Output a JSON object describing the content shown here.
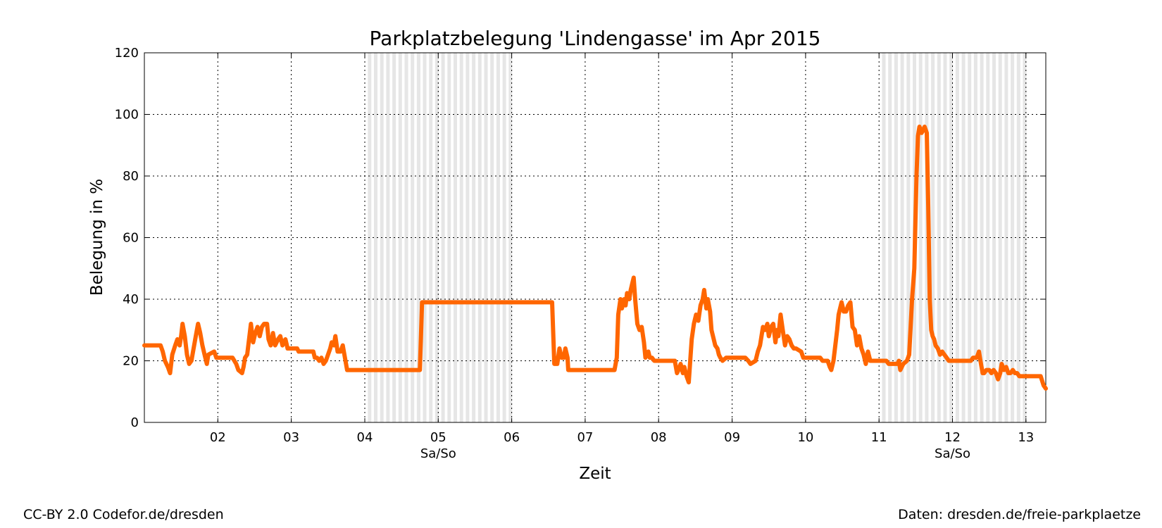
{
  "chart_data": {
    "type": "line",
    "title": "Parkplatzbelegung 'Lindengasse' im Apr 2015",
    "xlabel": "Zeit",
    "ylabel": "Belegung in %",
    "xlim": [
      1.0,
      13.27
    ],
    "ylim": [
      0,
      120
    ],
    "grid": true,
    "x_ticks": [
      {
        "value": 2,
        "label": "02"
      },
      {
        "value": 3,
        "label": "03"
      },
      {
        "value": 4,
        "label": "04"
      },
      {
        "value": 5,
        "label": "05"
      },
      {
        "value": 6,
        "label": "06"
      },
      {
        "value": 7,
        "label": "07"
      },
      {
        "value": 8,
        "label": "08"
      },
      {
        "value": 9,
        "label": "09"
      },
      {
        "value": 10,
        "label": "10"
      },
      {
        "value": 11,
        "label": "11"
      },
      {
        "value": 12,
        "label": "12"
      },
      {
        "value": 13,
        "label": "13"
      }
    ],
    "y_ticks": [
      0,
      20,
      40,
      60,
      80,
      100,
      120
    ],
    "weekends": [
      {
        "start": 4.0,
        "end": 6.0,
        "label": "Sa/So"
      },
      {
        "start": 11.0,
        "end": 13.0,
        "label": "Sa/So"
      }
    ],
    "series": [
      {
        "color": "#ff6600",
        "points": [
          [
            1.0,
            25
          ],
          [
            1.22,
            25
          ],
          [
            1.25,
            23
          ],
          [
            1.28,
            20
          ],
          [
            1.32,
            18
          ],
          [
            1.35,
            16
          ],
          [
            1.38,
            22
          ],
          [
            1.42,
            25
          ],
          [
            1.45,
            27
          ],
          [
            1.48,
            25
          ],
          [
            1.5,
            28
          ],
          [
            1.52,
            32
          ],
          [
            1.55,
            28
          ],
          [
            1.58,
            22
          ],
          [
            1.61,
            19
          ],
          [
            1.64,
            20
          ],
          [
            1.67,
            24
          ],
          [
            1.7,
            28
          ],
          [
            1.73,
            32
          ],
          [
            1.76,
            29
          ],
          [
            1.79,
            25
          ],
          [
            1.82,
            22
          ],
          [
            1.85,
            19
          ],
          [
            1.87,
            22
          ],
          [
            1.95,
            23
          ],
          [
            1.98,
            21
          ],
          [
            2.2,
            21
          ],
          [
            2.25,
            19
          ],
          [
            2.28,
            17
          ],
          [
            2.33,
            16
          ],
          [
            2.35,
            18
          ],
          [
            2.37,
            21
          ],
          [
            2.4,
            22
          ],
          [
            2.43,
            28
          ],
          [
            2.45,
            32
          ],
          [
            2.48,
            26
          ],
          [
            2.51,
            29
          ],
          [
            2.54,
            31
          ],
          [
            2.57,
            28
          ],
          [
            2.6,
            31
          ],
          [
            2.63,
            32
          ],
          [
            2.67,
            32
          ],
          [
            2.69,
            27
          ],
          [
            2.72,
            25
          ],
          [
            2.75,
            29
          ],
          [
            2.78,
            25
          ],
          [
            2.82,
            27
          ],
          [
            2.85,
            28
          ],
          [
            2.88,
            25
          ],
          [
            2.92,
            27
          ],
          [
            2.95,
            24
          ],
          [
            3.08,
            24
          ],
          [
            3.1,
            23
          ],
          [
            3.3,
            23
          ],
          [
            3.32,
            21
          ],
          [
            3.35,
            21
          ],
          [
            3.38,
            20
          ],
          [
            3.41,
            21
          ],
          [
            3.44,
            19
          ],
          [
            3.47,
            20
          ],
          [
            3.5,
            22
          ],
          [
            3.53,
            24
          ],
          [
            3.55,
            26
          ],
          [
            3.58,
            25
          ],
          [
            3.6,
            28
          ],
          [
            3.63,
            23
          ],
          [
            3.67,
            23
          ],
          [
            3.7,
            25
          ],
          [
            3.73,
            21
          ],
          [
            3.76,
            17
          ],
          [
            4.75,
            17
          ],
          [
            4.78,
            39
          ],
          [
            6.55,
            39
          ],
          [
            6.58,
            19
          ],
          [
            6.62,
            19
          ],
          [
            6.65,
            24
          ],
          [
            6.68,
            21
          ],
          [
            6.71,
            21
          ],
          [
            6.73,
            24
          ],
          [
            6.76,
            21
          ],
          [
            6.77,
            17
          ],
          [
            7.4,
            17
          ],
          [
            7.43,
            21
          ],
          [
            7.45,
            35
          ],
          [
            7.48,
            40
          ],
          [
            7.5,
            37
          ],
          [
            7.53,
            40
          ],
          [
            7.55,
            38
          ],
          [
            7.57,
            42
          ],
          [
            7.6,
            40
          ],
          [
            7.62,
            43
          ],
          [
            7.64,
            45
          ],
          [
            7.66,
            47
          ],
          [
            7.68,
            40
          ],
          [
            7.71,
            32
          ],
          [
            7.74,
            30
          ],
          [
            7.77,
            31
          ],
          [
            7.8,
            26
          ],
          [
            7.82,
            21
          ],
          [
            7.86,
            23
          ],
          [
            7.88,
            21
          ],
          [
            7.91,
            21
          ],
          [
            7.94,
            20
          ],
          [
            8.22,
            20
          ],
          [
            8.25,
            16
          ],
          [
            8.27,
            17
          ],
          [
            8.3,
            19
          ],
          [
            8.33,
            16
          ],
          [
            8.35,
            18
          ],
          [
            8.38,
            15
          ],
          [
            8.41,
            13
          ],
          [
            8.43,
            20
          ],
          [
            8.45,
            27
          ],
          [
            8.48,
            32
          ],
          [
            8.51,
            35
          ],
          [
            8.54,
            33
          ],
          [
            8.57,
            38
          ],
          [
            8.6,
            40
          ],
          [
            8.62,
            43
          ],
          [
            8.65,
            37
          ],
          [
            8.67,
            40
          ],
          [
            8.7,
            36
          ],
          [
            8.72,
            30
          ],
          [
            8.75,
            27
          ],
          [
            8.77,
            25
          ],
          [
            8.8,
            24
          ],
          [
            8.82,
            22
          ],
          [
            8.84,
            21
          ],
          [
            8.87,
            20
          ],
          [
            8.92,
            21
          ],
          [
            9.18,
            21
          ],
          [
            9.22,
            20
          ],
          [
            9.25,
            19
          ],
          [
            9.32,
            20
          ],
          [
            9.35,
            23
          ],
          [
            9.38,
            25
          ],
          [
            9.4,
            28
          ],
          [
            9.42,
            31
          ],
          [
            9.45,
            30
          ],
          [
            9.48,
            32
          ],
          [
            9.5,
            28
          ],
          [
            9.53,
            31
          ],
          [
            9.56,
            32
          ],
          [
            9.59,
            26
          ],
          [
            9.61,
            30
          ],
          [
            9.63,
            28
          ],
          [
            9.66,
            35
          ],
          [
            9.69,
            30
          ],
          [
            9.72,
            25
          ],
          [
            9.75,
            28
          ],
          [
            9.78,
            27
          ],
          [
            9.81,
            25
          ],
          [
            9.84,
            24
          ],
          [
            9.87,
            24
          ],
          [
            9.94,
            23
          ],
          [
            9.97,
            21
          ],
          [
            10.2,
            21
          ],
          [
            10.23,
            20
          ],
          [
            10.3,
            20
          ],
          [
            10.33,
            18
          ],
          [
            10.35,
            17
          ],
          [
            10.38,
            20
          ],
          [
            10.4,
            24
          ],
          [
            10.43,
            30
          ],
          [
            10.45,
            35
          ],
          [
            10.47,
            37
          ],
          [
            10.49,
            39
          ],
          [
            10.52,
            36
          ],
          [
            10.55,
            36
          ],
          [
            10.58,
            38
          ],
          [
            10.61,
            39
          ],
          [
            10.64,
            31
          ],
          [
            10.67,
            30
          ],
          [
            10.7,
            25
          ],
          [
            10.73,
            28
          ],
          [
            10.76,
            24
          ],
          [
            10.79,
            22
          ],
          [
            10.82,
            19
          ],
          [
            10.85,
            23
          ],
          [
            10.88,
            20
          ],
          [
            10.91,
            20
          ],
          [
            11.1,
            20
          ],
          [
            11.13,
            19
          ],
          [
            11.25,
            19
          ],
          [
            11.27,
            20
          ],
          [
            11.29,
            17
          ],
          [
            11.33,
            19
          ],
          [
            11.38,
            20
          ],
          [
            11.41,
            22
          ],
          [
            11.45,
            40
          ],
          [
            11.48,
            50
          ],
          [
            11.51,
            80
          ],
          [
            11.53,
            93
          ],
          [
            11.55,
            96
          ],
          [
            11.58,
            94
          ],
          [
            11.62,
            96
          ],
          [
            11.65,
            94
          ],
          [
            11.67,
            70
          ],
          [
            11.69,
            40
          ],
          [
            11.71,
            30
          ],
          [
            11.73,
            28
          ],
          [
            11.75,
            27
          ],
          [
            11.77,
            25
          ],
          [
            11.8,
            24
          ],
          [
            11.83,
            22
          ],
          [
            11.86,
            23
          ],
          [
            11.89,
            22
          ],
          [
            11.92,
            21
          ],
          [
            11.95,
            20
          ],
          [
            12.25,
            20
          ],
          [
            12.28,
            21
          ],
          [
            12.33,
            21
          ],
          [
            12.36,
            23
          ],
          [
            12.38,
            20
          ],
          [
            12.41,
            16
          ],
          [
            12.43,
            16
          ],
          [
            12.46,
            17
          ],
          [
            12.5,
            17
          ],
          [
            12.53,
            16
          ],
          [
            12.56,
            17
          ],
          [
            12.59,
            16
          ],
          [
            12.62,
            14
          ],
          [
            12.65,
            16
          ],
          [
            12.67,
            19
          ],
          [
            12.7,
            17
          ],
          [
            12.73,
            18
          ],
          [
            12.76,
            16
          ],
          [
            12.79,
            16
          ],
          [
            12.82,
            17
          ],
          [
            12.85,
            16
          ],
          [
            12.88,
            16
          ],
          [
            12.91,
            15
          ],
          [
            13.2,
            15
          ],
          [
            13.24,
            12
          ],
          [
            13.27,
            11
          ]
        ]
      }
    ]
  },
  "footer": {
    "license": "CC-BY 2.0 Codefor.de/dresden",
    "source": "Daten: dresden.de/freie-parkplaetze"
  }
}
